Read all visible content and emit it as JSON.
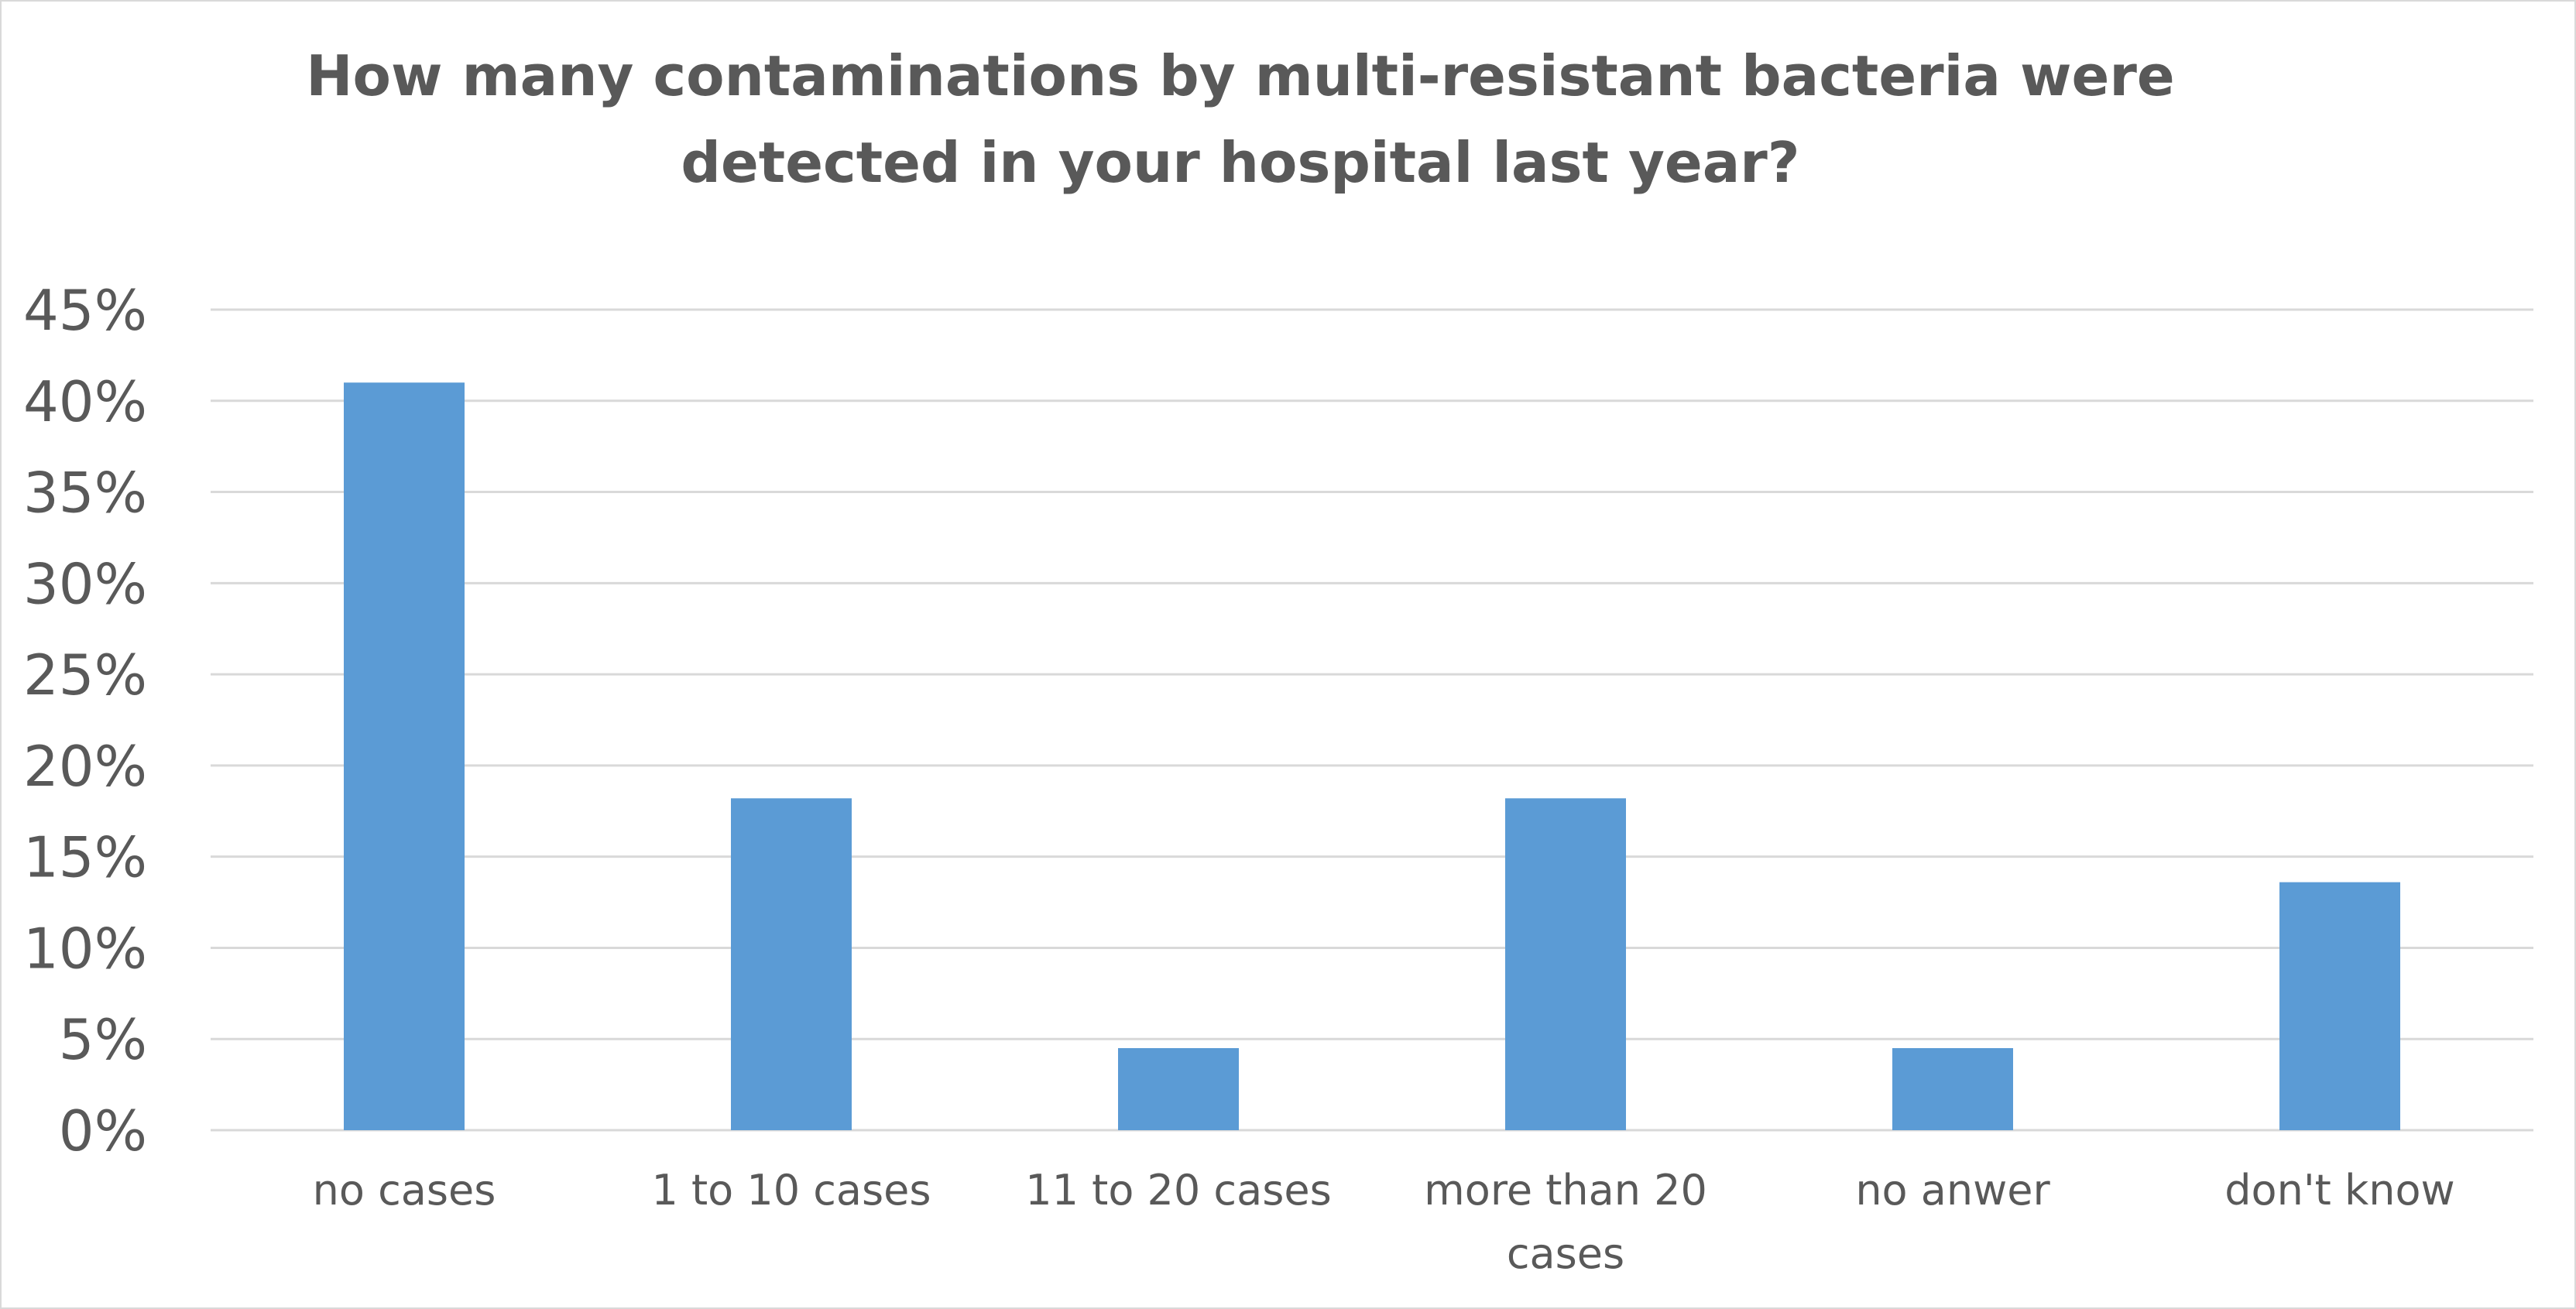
{
  "chart_data": {
    "type": "bar",
    "title": "How many contaminations by multi-resistant bacteria were detected in your hospital last year?",
    "categories": [
      "no cases",
      "1 to 10 cases",
      "11 to 20 cases",
      "more than 20 cases",
      "no anwer",
      "don't know"
    ],
    "category_lines": [
      [
        "no cases"
      ],
      [
        "1 to 10 cases"
      ],
      [
        "11 to 20 cases"
      ],
      [
        "more than 20",
        "cases"
      ],
      [
        "no anwer"
      ],
      [
        "don't know"
      ]
    ],
    "values": [
      0.41,
      0.182,
      0.045,
      0.182,
      0.045,
      0.136
    ],
    "ylim": [
      0,
      0.45
    ],
    "yticks": [
      0,
      0.05,
      0.1,
      0.15,
      0.2,
      0.25,
      0.3,
      0.35,
      0.4,
      0.45
    ],
    "ytick_labels": [
      "0%",
      "5%",
      "10%",
      "15%",
      "20%",
      "25%",
      "30%",
      "35%",
      "40%",
      "45%"
    ],
    "xlabel": "",
    "ylabel": "",
    "grid": true,
    "legend": "none",
    "bar_color": "#5b9bd5",
    "grid_color": "#d9d9d9",
    "text_color": "#595959"
  }
}
